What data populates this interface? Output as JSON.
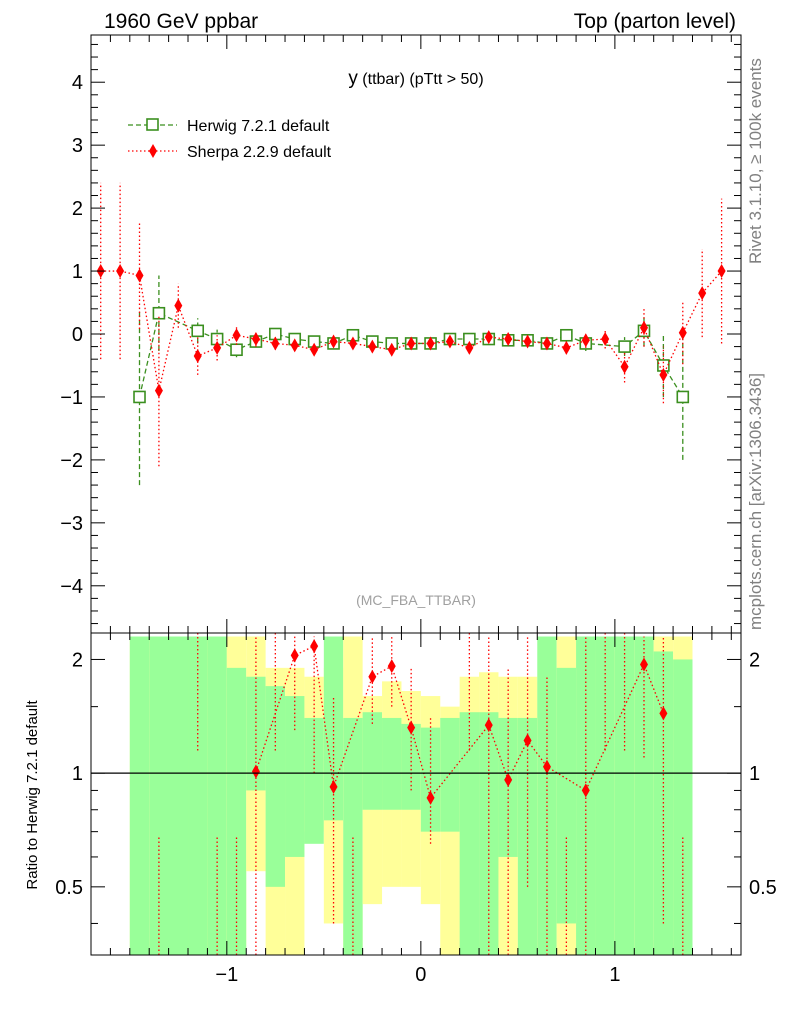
{
  "header": {
    "left": "1960 GeV ppbar",
    "right": "Top (parton level)"
  },
  "side": {
    "rivet": "Rivet 3.1.10, ≥ 100k events",
    "mcplots": "mcplots.cern.ch [arXiv:1306.3436]"
  },
  "colors": {
    "herwig": "#3b8f1f",
    "sherpa": "#ff0000",
    "band_outer": "#ffff99",
    "band_inner": "#99ff99"
  },
  "chart_data": [
    {
      "type": "line",
      "title_main": "y",
      "title_rest": " (ttbar) (pTtt > 50)",
      "analysis": "(MC_FBA_TTBAR)",
      "xlim": [
        -1.7,
        1.65
      ],
      "ylim": [
        -4.75,
        4.75
      ],
      "yticks": [
        -4,
        -3,
        -2,
        -1,
        0,
        1,
        2,
        3,
        4
      ],
      "ytick_labels": [
        "−4",
        "−3",
        "−2",
        "−1",
        "0",
        "1",
        "2",
        "3",
        "4"
      ],
      "series": [
        {
          "name": "Herwig 7.2.1 default",
          "style": "dashed",
          "marker": "open-square",
          "x": [
            -1.45,
            -1.35,
            -1.15,
            -1.05,
            -0.95,
            -0.85,
            -0.75,
            -0.65,
            -0.55,
            -0.45,
            -0.35,
            -0.25,
            -0.15,
            -0.05,
            0.05,
            0.15,
            0.25,
            0.35,
            0.45,
            0.55,
            0.65,
            0.75,
            0.85,
            1.05,
            1.15,
            1.25,
            1.35
          ],
          "y": [
            -1.0,
            0.33,
            0.05,
            -0.08,
            -0.25,
            -0.12,
            0.0,
            -0.08,
            -0.12,
            -0.15,
            -0.02,
            -0.12,
            -0.15,
            -0.15,
            -0.15,
            -0.08,
            -0.08,
            -0.08,
            -0.1,
            -0.1,
            -0.15,
            -0.02,
            -0.15,
            -0.2,
            0.05,
            -0.5,
            -1.0
          ],
          "err": [
            1.4,
            0.6,
            0.2,
            0.15,
            0.12,
            0.08,
            0.07,
            0.06,
            0.05,
            0.05,
            0.05,
            0.05,
            0.05,
            0.05,
            0.05,
            0.05,
            0.05,
            0.06,
            0.06,
            0.07,
            0.08,
            0.1,
            0.12,
            0.15,
            0.25,
            0.5,
            1.0
          ]
        },
        {
          "name": "Sherpa 2.2.9 default",
          "style": "dotted",
          "marker": "filled-diamond",
          "x": [
            -1.65,
            -1.55,
            -1.45,
            -1.35,
            -1.25,
            -1.15,
            -1.05,
            -0.95,
            -0.85,
            -0.75,
            -0.65,
            -0.55,
            -0.45,
            -0.35,
            -0.25,
            -0.15,
            -0.05,
            0.05,
            0.15,
            0.25,
            0.35,
            0.45,
            0.55,
            0.65,
            0.75,
            0.85,
            0.95,
            1.05,
            1.15,
            1.25,
            1.35,
            1.45,
            1.55
          ],
          "y": [
            1.0,
            1.0,
            0.93,
            -0.9,
            0.45,
            -0.35,
            -0.22,
            -0.02,
            -0.08,
            -0.15,
            -0.18,
            -0.25,
            -0.12,
            -0.15,
            -0.2,
            -0.25,
            -0.15,
            -0.15,
            -0.12,
            -0.22,
            -0.05,
            -0.08,
            -0.12,
            -0.15,
            -0.22,
            -0.1,
            -0.08,
            -0.52,
            0.1,
            -0.65,
            0.02,
            0.65,
            1.0
          ],
          "err": [
            1.4,
            1.4,
            0.85,
            1.2,
            0.35,
            0.3,
            0.2,
            0.15,
            0.12,
            0.1,
            0.09,
            0.08,
            0.07,
            0.07,
            0.07,
            0.07,
            0.07,
            0.07,
            0.07,
            0.07,
            0.07,
            0.07,
            0.08,
            0.09,
            0.1,
            0.12,
            0.15,
            0.25,
            0.3,
            0.45,
            0.5,
            0.7,
            1.15
          ]
        }
      ]
    },
    {
      "type": "ratio",
      "ylabel": "Ratio to Herwig 7.2.1 default",
      "ylim": [
        0.33,
        2.35
      ],
      "yticks": [
        0.5,
        1,
        2
      ],
      "ytick_labels": [
        "0.5",
        "1",
        "2"
      ],
      "xticks": [
        -1,
        0,
        1
      ],
      "xtick_labels": [
        "−1",
        "0",
        "1"
      ],
      "band_edges": [
        -1.5,
        -1.4,
        -1.2,
        -1.1,
        -1.0,
        -0.9,
        -0.8,
        -0.7,
        -0.6,
        -0.5,
        -0.4,
        -0.3,
        -0.2,
        -0.1,
        0.0,
        0.1,
        0.2,
        0.3,
        0.4,
        0.5,
        0.6,
        0.7,
        0.8,
        0.9,
        1.0,
        1.1,
        1.2,
        1.3,
        1.4
      ],
      "band_outer_lo": [
        0.3,
        0.3,
        0.3,
        0.3,
        0.3,
        0.55,
        0.3,
        0.3,
        0.7,
        0.4,
        0.3,
        0.45,
        0.5,
        0.5,
        0.45,
        0.3,
        0.3,
        0.3,
        0.3,
        0.3,
        0.3,
        0.3,
        0.3,
        0.3,
        0.3,
        0.3,
        0.3,
        0.3
      ],
      "band_outer_hi": [
        2.3,
        2.3,
        2.3,
        2.3,
        2.3,
        2.3,
        1.9,
        1.9,
        1.8,
        1.9,
        2.3,
        1.6,
        1.75,
        1.65,
        1.6,
        1.5,
        1.8,
        1.85,
        1.8,
        1.8,
        1.75,
        2.3,
        2.3,
        2.1,
        2.3,
        2.3,
        2.3,
        2.3
      ],
      "band_inner_lo": [
        0.3,
        0.3,
        0.3,
        0.3,
        0.3,
        0.9,
        0.5,
        0.6,
        0.65,
        0.75,
        0.3,
        0.8,
        0.8,
        0.8,
        0.7,
        0.7,
        0.3,
        0.3,
        0.6,
        0.3,
        0.3,
        0.4,
        0.3,
        0.3,
        0.3,
        0.3,
        0.3,
        0.3
      ],
      "band_inner_hi": [
        2.3,
        2.3,
        2.3,
        2.3,
        1.9,
        1.8,
        1.7,
        1.6,
        1.4,
        2.3,
        1.4,
        1.45,
        1.4,
        1.35,
        1.32,
        1.4,
        1.45,
        1.45,
        1.4,
        1.4,
        2.3,
        1.9,
        2.3,
        2.3,
        2.3,
        2.3,
        2.1,
        2.0
      ],
      "sherpa_x": [
        -0.85,
        -0.65,
        -0.55,
        -0.45,
        -0.25,
        -0.15,
        -0.05,
        0.05,
        0.35,
        0.45,
        0.55,
        0.65,
        0.85,
        1.15,
        1.25
      ],
      "sherpa_y": [
        1.01,
        2.05,
        2.17,
        0.92,
        1.8,
        1.92,
        1.32,
        0.86,
        1.34,
        0.96,
        1.22,
        1.04,
        0.9,
        1.94,
        1.44
      ],
      "sherpa_lo": [
        0.3,
        1.3,
        1.0,
        0.4,
        1.35,
        1.5,
        0.9,
        0.65,
        0.3,
        0.3,
        0.5,
        0.3,
        0.3,
        1.1,
        0.4
      ],
      "sherpa_hi": [
        2.3,
        2.3,
        2.3,
        1.6,
        2.3,
        2.3,
        1.9,
        1.4,
        2.3,
        1.9,
        2.3,
        1.8,
        2.3,
        2.3,
        2.3
      ],
      "offscale_x": [
        -1.35,
        -1.15,
        -1.05,
        -0.95,
        -0.75,
        -0.35,
        0.25,
        0.75,
        0.95,
        1.05,
        1.35
      ],
      "offscale_dir": [
        "lo",
        "hi",
        "lo",
        "lo",
        "hi",
        "lo",
        "hi",
        "lo",
        "hi",
        "hi",
        "lo"
      ]
    }
  ]
}
